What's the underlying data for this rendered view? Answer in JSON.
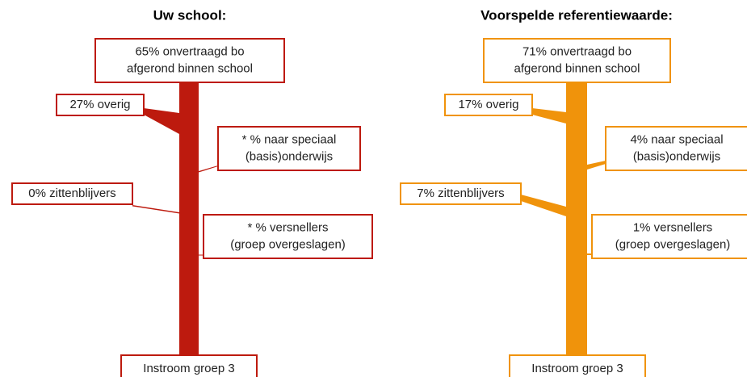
{
  "panels": [
    {
      "title": "Uw school:",
      "color": "#bd1a0e",
      "top": [
        "65% onvertraagd bo",
        "afgerond binnen school"
      ],
      "overig": [
        "27% overig"
      ],
      "speciaal": [
        "* % naar speciaal",
        "(basis)onderwijs"
      ],
      "zittenblijvers": [
        "0% zittenblijvers"
      ],
      "versnellers": [
        "* % versnellers",
        "(groep overgeslagen)"
      ],
      "bottom": [
        "Instroom groep 3"
      ]
    },
    {
      "title": "Voorspelde referentiewaarde:",
      "color": "#f0930b",
      "top": [
        "71% onvertraagd bo",
        "afgerond binnen school"
      ],
      "overig": [
        "17% overig"
      ],
      "speciaal": [
        "4% naar speciaal",
        "(basis)onderwijs"
      ],
      "zittenblijvers": [
        "7% zittenblijvers"
      ],
      "versnellers": [
        "1% versnellers",
        "(groep overgeslagen)"
      ],
      "bottom": [
        "Instroom groep 3"
      ]
    }
  ]
}
